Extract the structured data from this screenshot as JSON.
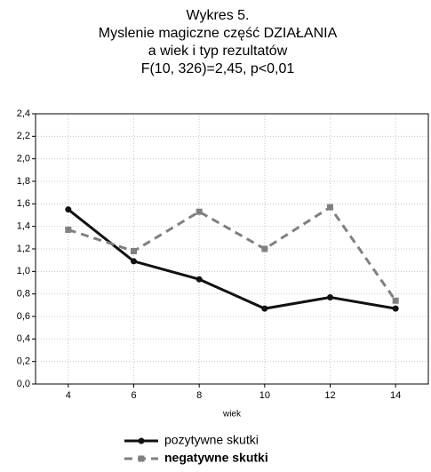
{
  "chart_data": {
    "type": "line",
    "title": [
      "Wykres 5.",
      "Myslenie magiczne  część DZIAŁANIA",
      "a wiek i typ rezultatów",
      "F(10, 326)=2,45, p<0,01"
    ],
    "x_label": "wiek",
    "x": [
      4,
      6,
      8,
      10,
      12,
      14
    ],
    "xlim": [
      3,
      15
    ],
    "xticks": [
      4,
      6,
      8,
      10,
      12,
      14
    ],
    "ylim": [
      0,
      2.4
    ],
    "yticks": [
      {
        "value": 0,
        "label": "0,0"
      },
      {
        "value": 0.2,
        "label": "0,2"
      },
      {
        "value": 0.4,
        "label": "0,4"
      },
      {
        "value": 0.6,
        "label": "0,6"
      },
      {
        "value": 0.8,
        "label": "0,8"
      },
      {
        "value": 1.0,
        "label": "1,0"
      },
      {
        "value": 1.2,
        "label": "1,2"
      },
      {
        "value": 1.4,
        "label": "1,4"
      },
      {
        "value": 1.6,
        "label": "1,6"
      },
      {
        "value": 1.8,
        "label": "1,8"
      },
      {
        "value": 2.0,
        "label": "2,0"
      },
      {
        "value": 2.2,
        "label": "2,2"
      },
      {
        "value": 2.4,
        "label": "2,4"
      }
    ],
    "grid": true,
    "legend": "bottom",
    "series": [
      {
        "name": "pozytywne skutki",
        "color": "#111111",
        "linestyle": "solid",
        "marker": "circle",
        "values": [
          1.55,
          1.09,
          0.93,
          0.67,
          0.77,
          0.67
        ]
      },
      {
        "name": "negatywne skutki",
        "color": "#808080",
        "linestyle": "dashed",
        "marker": "square",
        "values": [
          1.37,
          1.18,
          1.53,
          1.2,
          1.57,
          0.74
        ]
      }
    ]
  }
}
